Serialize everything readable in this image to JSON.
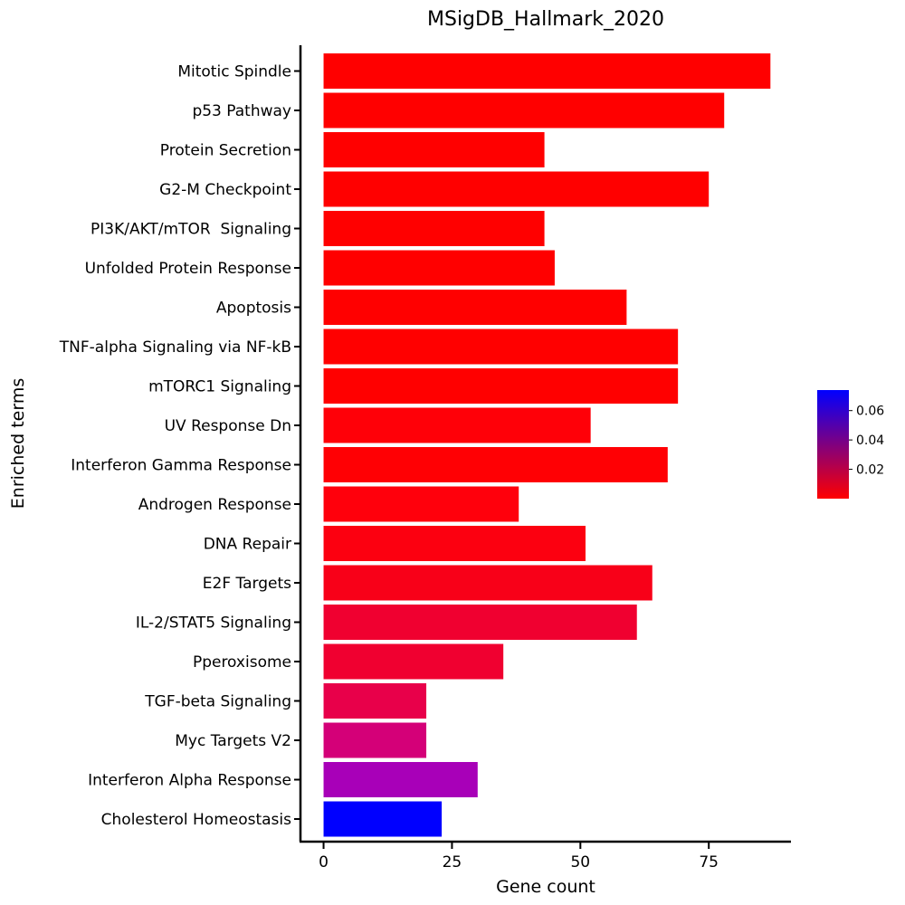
{
  "chart_data": {
    "type": "bar",
    "orientation": "horizontal",
    "title": "MSigDB_Hallmark_2020",
    "xlabel": "Gene count",
    "ylabel": "Enriched terms",
    "xlim": [
      -4.5,
      91
    ],
    "xticks": [
      0,
      25,
      50,
      75
    ],
    "xtick_labels": [
      "0",
      "25",
      "50",
      "75"
    ],
    "grid": false,
    "legend": "right (colorbar)",
    "colormap": {
      "low_color": "#ff0000",
      "high_color": "#0000ff",
      "range": [
        0.0,
        0.074
      ],
      "ticks": [
        0.02,
        0.04,
        0.06
      ],
      "tick_labels": [
        "0.02",
        "0.04",
        "0.06"
      ]
    },
    "bars": [
      {
        "term": "Mitotic Spindle",
        "count": 87,
        "color": "#ff0000"
      },
      {
        "term": "p53 Pathway",
        "count": 78,
        "color": "#ff0000"
      },
      {
        "term": "Protein Secretion",
        "count": 43,
        "color": "#ff0000"
      },
      {
        "term": "G2-M Checkpoint",
        "count": 75,
        "color": "#ff0000"
      },
      {
        "term": "PI3K/AKT/mTOR  Signaling",
        "count": 43,
        "color": "#ff0000"
      },
      {
        "term": "Unfolded Protein Response",
        "count": 45,
        "color": "#ff0000"
      },
      {
        "term": "Apoptosis",
        "count": 59,
        "color": "#ff0000"
      },
      {
        "term": "TNF-alpha Signaling via NF-kB",
        "count": 69,
        "color": "#ff0000"
      },
      {
        "term": "mTORC1 Signaling",
        "count": 69,
        "color": "#ff0000"
      },
      {
        "term": "UV Response Dn",
        "count": 52,
        "color": "#ff0008"
      },
      {
        "term": "Interferon Gamma Response",
        "count": 67,
        "color": "#ff0004"
      },
      {
        "term": "Androgen Response",
        "count": 38,
        "color": "#ff000c"
      },
      {
        "term": "DNA Repair",
        "count": 51,
        "color": "#fc0010"
      },
      {
        "term": "E2F Targets",
        "count": 64,
        "color": "#f80018"
      },
      {
        "term": "IL-2/STAT5 Signaling",
        "count": 61,
        "color": "#f00030"
      },
      {
        "term": "Pperoxisome",
        "count": 35,
        "color": "#f00030"
      },
      {
        "term": "TGF-beta Signaling",
        "count": 20,
        "color": "#e8004a"
      },
      {
        "term": "Myc Targets V2",
        "count": 20,
        "color": "#d40078"
      },
      {
        "term": "Interferon Alpha Response",
        "count": 30,
        "color": "#a800b8"
      },
      {
        "term": "Cholesterol Homeostasis",
        "count": 23,
        "color": "#0000ff"
      }
    ]
  }
}
